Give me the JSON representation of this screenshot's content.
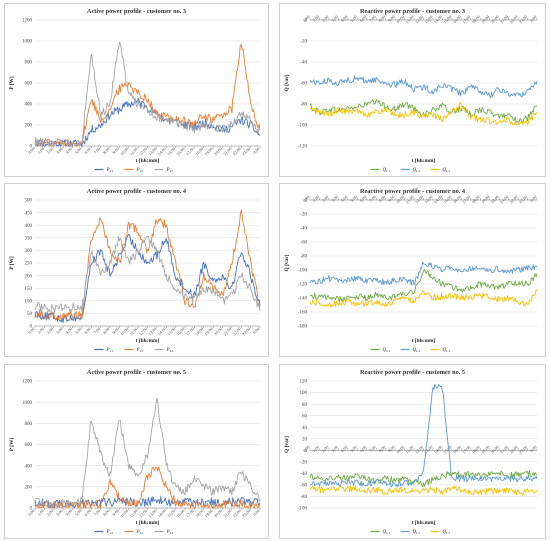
{
  "x_ticks": [
    "0:00",
    "1:00",
    "2:00",
    "3:00",
    "4:00",
    "5:00",
    "6:00",
    "7:00",
    "8:00",
    "9:00",
    "10:00",
    "11:00",
    "12:00",
    "13:00",
    "14:00",
    "15:00",
    "16:00",
    "17:00",
    "18:00",
    "19:00",
    "20:00",
    "21:00",
    "22:00",
    "23:00",
    "0:00"
  ],
  "colors": {
    "L1": "#4472c4",
    "L2": "#ed7d31",
    "L3": "#a5a5a5",
    "QL1": "#70ad47",
    "QL2": "#5b9bd5",
    "QL3": "#ffc000"
  },
  "panels": [
    {
      "title": "Active power profile - customer no. 3",
      "xlabel": "t [hh:mm]",
      "ylabel": "P [W]",
      "legend": [
        {
          "text": "P",
          "sub": "L1"
        },
        {
          "text": "P",
          "sub": "L2"
        },
        {
          "text": "P",
          "sub": "L3"
        }
      ]
    },
    {
      "title": "Reactive power profile - customer no. 3",
      "xlabel": "t [hh:mm]",
      "ylabel": "Q [var]",
      "legend": [
        {
          "text": "Q",
          "sub": "L1"
        },
        {
          "text": "Q",
          "sub": "L2"
        },
        {
          "text": "Q",
          "sub": "L3"
        }
      ]
    },
    {
      "title": "Active power profile - customer no. 4",
      "xlabel": "t [hh:mm]",
      "ylabel": "P [W]",
      "legend": [
        {
          "text": "P",
          "sub": "L1"
        },
        {
          "text": "P",
          "sub": "L2"
        },
        {
          "text": "P",
          "sub": "L3"
        }
      ]
    },
    {
      "title": "Reactive power profile - customer no. 4",
      "xlabel": "t [hh:mm]",
      "ylabel": "Q [var]",
      "legend": [
        {
          "text": "Q",
          "sub": "L1"
        },
        {
          "text": "Q",
          "sub": "L2"
        },
        {
          "text": "Q",
          "sub": "L3"
        }
      ]
    },
    {
      "title": "Active power profile - customer no. 5",
      "xlabel": "t [hh:mm]",
      "ylabel": "P [W]",
      "legend": [
        {
          "text": "P",
          "sub": "L1"
        },
        {
          "text": "P",
          "sub": "L2"
        },
        {
          "text": "P",
          "sub": "L3"
        }
      ]
    },
    {
      "title": "Reactive power profile - customer no. 5",
      "xlabel": "t [hh:mm]",
      "ylabel": "Q [var]",
      "legend": [
        {
          "text": "Q",
          "sub": "L1"
        },
        {
          "text": "Q",
          "sub": "L2"
        },
        {
          "text": "Q",
          "sub": "L3"
        }
      ]
    }
  ],
  "chart_data": [
    {
      "type": "line",
      "title": "Active power profile - customer no. 3",
      "xlabel": "t [hh:mm]",
      "ylabel": "P [W]",
      "ylim": [
        0,
        1200
      ],
      "yticks": [
        0,
        200,
        400,
        600,
        800,
        1000,
        1200
      ],
      "categories": [
        "0:00",
        "1:00",
        "2:00",
        "3:00",
        "4:00",
        "5:00",
        "6:00",
        "7:00",
        "8:00",
        "9:00",
        "10:00",
        "11:00",
        "12:00",
        "13:00",
        "14:00",
        "15:00",
        "16:00",
        "17:00",
        "18:00",
        "19:00",
        "20:00",
        "21:00",
        "22:00",
        "23:00",
        "0:00"
      ],
      "series": [
        {
          "name": "PL1",
          "values": [
            30,
            25,
            22,
            20,
            20,
            20,
            150,
            200,
            300,
            350,
            400,
            420,
            380,
            300,
            250,
            230,
            200,
            180,
            220,
            200,
            150,
            180,
            250,
            200,
            100
          ]
        },
        {
          "name": "PL2",
          "values": [
            35,
            30,
            25,
            25,
            25,
            25,
            450,
            250,
            350,
            550,
            600,
            500,
            450,
            300,
            280,
            260,
            240,
            200,
            300,
            250,
            300,
            350,
            1000,
            400,
            150
          ]
        },
        {
          "name": "PL3",
          "values": [
            40,
            35,
            30,
            30,
            30,
            30,
            900,
            300,
            400,
            1020,
            500,
            400,
            350,
            280,
            250,
            220,
            200,
            150,
            200,
            200,
            150,
            200,
            300,
            250,
            100
          ]
        }
      ]
    },
    {
      "type": "line",
      "title": "Reactive power profile - customer no. 3",
      "xlabel": "t [hh:mm]",
      "ylabel": "Q [var]",
      "ylim": [
        -120,
        0
      ],
      "yticks": [
        0,
        -20,
        -40,
        -60,
        -80,
        -100,
        -120
      ],
      "categories": [
        "0:00",
        "1:00",
        "2:00",
        "3:00",
        "4:00",
        "5:00",
        "6:00",
        "7:00",
        "8:00",
        "9:00",
        "10:00",
        "11:00",
        "12:00",
        "13:00",
        "14:00",
        "15:00",
        "16:00",
        "17:00",
        "18:00",
        "19:00",
        "20:00",
        "21:00",
        "22:00",
        "23:00",
        "0:00"
      ],
      "series": [
        {
          "name": "QL1",
          "values": [
            -82,
            -88,
            -85,
            -86,
            -84,
            -83,
            -80,
            -78,
            -82,
            -85,
            -80,
            -84,
            -90,
            -86,
            -82,
            -88,
            -84,
            -90,
            -85,
            -88,
            -92,
            -90,
            -96,
            -94,
            -82
          ]
        },
        {
          "name": "QL2",
          "values": [
            -58,
            -60,
            -58,
            -60,
            -57,
            -56,
            -58,
            -57,
            -60,
            -62,
            -58,
            -66,
            -64,
            -68,
            -62,
            -66,
            -70,
            -64,
            -68,
            -72,
            -66,
            -70,
            -72,
            -68,
            -58
          ]
        },
        {
          "name": "QL3",
          "values": [
            -85,
            -88,
            -90,
            -86,
            -88,
            -86,
            -90,
            -88,
            -85,
            -92,
            -90,
            -88,
            -92,
            -90,
            -95,
            -88,
            -80,
            -92,
            -95,
            -96,
            -98,
            -95,
            -100,
            -98,
            -88
          ]
        }
      ]
    },
    {
      "type": "line",
      "title": "Active power profile - customer no. 4",
      "xlabel": "t [hh:mm]",
      "ylabel": "P [W]",
      "ylim": [
        0,
        500
      ],
      "yticks": [
        0,
        50,
        100,
        150,
        200,
        250,
        300,
        350,
        400,
        450,
        500
      ],
      "categories": [
        "0:00",
        "1:00",
        "2:00",
        "3:00",
        "4:00",
        "5:00",
        "6:00",
        "7:00",
        "8:00",
        "9:00",
        "10:00",
        "11:00",
        "12:00",
        "13:00",
        "14:00",
        "15:00",
        "16:00",
        "17:00",
        "18:00",
        "19:00",
        "20:00",
        "21:00",
        "22:00",
        "23:00",
        "0:00"
      ],
      "series": [
        {
          "name": "PL1",
          "values": [
            50,
            40,
            35,
            30,
            35,
            30,
            250,
            300,
            200,
            280,
            350,
            300,
            250,
            280,
            350,
            200,
            150,
            120,
            250,
            180,
            200,
            150,
            300,
            200,
            80
          ]
        },
        {
          "name": "PL2",
          "values": [
            55,
            45,
            40,
            40,
            40,
            45,
            350,
            420,
            300,
            250,
            400,
            380,
            300,
            420,
            400,
            250,
            100,
            80,
            200,
            150,
            120,
            250,
            450,
            250,
            70
          ]
        },
        {
          "name": "PL3",
          "values": [
            80,
            75,
            70,
            70,
            75,
            70,
            300,
            200,
            250,
            350,
            250,
            300,
            350,
            300,
            200,
            150,
            120,
            100,
            150,
            130,
            100,
            120,
            200,
            150,
            60
          ]
        }
      ]
    },
    {
      "type": "line",
      "title": "Reactive power profile - customer no. 4",
      "xlabel": "t [hh:mm]",
      "ylabel": "Q [var]",
      "ylim": [
        -180,
        0
      ],
      "yticks": [
        0,
        -20,
        -40,
        -60,
        -80,
        -100,
        -120,
        -140,
        -160,
        -180
      ],
      "categories": [
        "0:00",
        "1:00",
        "2:00",
        "3:00",
        "4:00",
        "5:00",
        "6:00",
        "7:00",
        "8:00",
        "9:00",
        "10:00",
        "11:00",
        "12:00",
        "13:00",
        "14:00",
        "15:00",
        "16:00",
        "17:00",
        "18:00",
        "19:00",
        "20:00",
        "21:00",
        "22:00",
        "23:00",
        "0:00"
      ],
      "series": [
        {
          "name": "QL1",
          "values": [
            -135,
            -140,
            -138,
            -142,
            -140,
            -138,
            -140,
            -135,
            -140,
            -138,
            -135,
            -132,
            -100,
            -110,
            -120,
            -125,
            -128,
            -125,
            -120,
            -122,
            -125,
            -120,
            -118,
            -120,
            -105
          ]
        },
        {
          "name": "QL2",
          "values": [
            -118,
            -115,
            -112,
            -116,
            -114,
            -112,
            -116,
            -114,
            -118,
            -115,
            -112,
            -120,
            -90,
            -95,
            -98,
            -96,
            -100,
            -98,
            -95,
            -100,
            -98,
            -102,
            -100,
            -96,
            -95
          ]
        },
        {
          "name": "QL3",
          "values": [
            -145,
            -148,
            -150,
            -147,
            -145,
            -150,
            -148,
            -146,
            -150,
            -145,
            -140,
            -145,
            -130,
            -140,
            -138,
            -135,
            -140,
            -138,
            -135,
            -140,
            -142,
            -140,
            -145,
            -150,
            -130
          ]
        }
      ]
    },
    {
      "type": "line",
      "title": "Active power profile - customer no. 5",
      "xlabel": "t [hh:mm]",
      "ylabel": "P [W]",
      "ylim": [
        0,
        1200
      ],
      "yticks": [
        0,
        200,
        400,
        600,
        800,
        1000,
        1200
      ],
      "categories": [
        "0:00",
        "1:00",
        "2:00",
        "3:00",
        "4:00",
        "5:00",
        "6:00",
        "7:00",
        "8:00",
        "9:00",
        "10:00",
        "11:00",
        "12:00",
        "13:00",
        "14:00",
        "15:00",
        "16:00",
        "17:00",
        "18:00",
        "19:00",
        "20:00",
        "21:00",
        "22:00",
        "23:00",
        "0:00"
      ],
      "series": [
        {
          "name": "PL1",
          "values": [
            50,
            45,
            40,
            40,
            40,
            45,
            50,
            60,
            50,
            70,
            60,
            50,
            60,
            70,
            60,
            50,
            60,
            55,
            50,
            60,
            50,
            55,
            60,
            50,
            50
          ]
        },
        {
          "name": "PL2",
          "values": [
            30,
            25,
            25,
            25,
            25,
            30,
            40,
            30,
            250,
            100,
            50,
            40,
            300,
            400,
            200,
            50,
            40,
            30,
            40,
            30,
            30,
            30,
            40,
            30,
            20
          ]
        },
        {
          "name": "PL3",
          "values": [
            60,
            55,
            50,
            50,
            55,
            60,
            850,
            500,
            300,
            850,
            400,
            300,
            500,
            1050,
            400,
            200,
            150,
            300,
            200,
            150,
            200,
            150,
            350,
            200,
            80
          ]
        }
      ]
    },
    {
      "type": "line",
      "title": "Reactive power profile - customer no. 5",
      "xlabel": "t [hh:mm]",
      "ylabel": "Q [var]",
      "ylim": [
        -100,
        120
      ],
      "yticks": [
        120,
        100,
        80,
        60,
        40,
        20,
        0,
        -20,
        -40,
        -60,
        -80,
        -100
      ],
      "categories": [
        "0:00",
        "1:00",
        "2:00",
        "3:00",
        "4:00",
        "5:00",
        "6:00",
        "7:00",
        "8:00",
        "9:00",
        "10:00",
        "11:00",
        "12:00",
        "13:00",
        "14:00",
        "15:00",
        "16:00",
        "17:00",
        "18:00",
        "19:00",
        "20:00",
        "21:00",
        "22:00",
        "23:00",
        "0:00"
      ],
      "series": [
        {
          "name": "QL1",
          "values": [
            -45,
            -48,
            -50,
            -46,
            -48,
            -45,
            -50,
            -55,
            -48,
            -52,
            -50,
            -55,
            -60,
            -50,
            -45,
            -40,
            -42,
            -40,
            -44,
            -42,
            -40,
            -44,
            -42,
            -40,
            -42
          ]
        },
        {
          "name": "QL2",
          "values": [
            -55,
            -58,
            -56,
            -58,
            -55,
            -57,
            -58,
            -55,
            -58,
            -60,
            -56,
            -58,
            -40,
            110,
            108,
            -50,
            -48,
            -50,
            -48,
            -52,
            -50,
            -48,
            -50,
            -48,
            -50
          ]
        },
        {
          "name": "QL3",
          "values": [
            -65,
            -68,
            -70,
            -66,
            -68,
            -65,
            -70,
            -68,
            -72,
            -70,
            -68,
            -72,
            -70,
            -68,
            -72,
            -65,
            -70,
            -72,
            -74,
            -70,
            -72,
            -70,
            -75,
            -72,
            -70
          ]
        }
      ]
    }
  ]
}
